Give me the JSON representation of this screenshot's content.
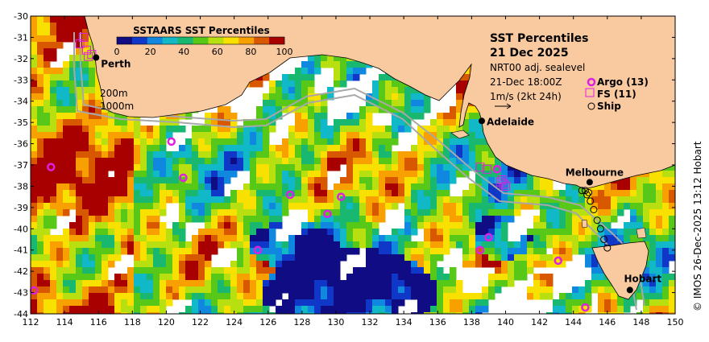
{
  "title": {
    "line1": "SST Percentiles",
    "line2": "21 Dec 2025",
    "line3": "NRT00 adj. sealevel",
    "line4": "21-Dec 18:00Z",
    "line5": "1m/s (2kt 24h)"
  },
  "colorbar": {
    "title": "SSTAARS SST Percentiles",
    "ticks": [
      "0",
      "20",
      "40",
      "60",
      "80",
      "100"
    ],
    "colors": [
      "#100c84",
      "#1038c8",
      "#1088e0",
      "#10b8c8",
      "#18b870",
      "#58c818",
      "#b8e010",
      "#f8e000",
      "#f8a000",
      "#d85800",
      "#a80000"
    ]
  },
  "legend": {
    "argo": "Argo (13)",
    "fs": "FS (11)",
    "ship": "Ship"
  },
  "depth_labels": [
    "200m",
    "1000m"
  ],
  "cities": [
    {
      "name": "Perth",
      "lon": 115.86,
      "lat": -31.95
    },
    {
      "name": "Adelaide",
      "lon": 138.6,
      "lat": -34.93
    },
    {
      "name": "Melbourne",
      "lon": 144.96,
      "lat": -37.81
    },
    {
      "name": "Hobart",
      "lon": 147.33,
      "lat": -42.88
    }
  ],
  "axes": {
    "x_ticks": [
      "112",
      "114",
      "116",
      "118",
      "120",
      "122",
      "124",
      "126",
      "128",
      "130",
      "132",
      "134",
      "136",
      "138",
      "140",
      "142",
      "144",
      "146",
      "148",
      "150"
    ],
    "y_ticks": [
      "-30",
      "-31",
      "-32",
      "-33",
      "-34",
      "-35",
      "-36",
      "-37",
      "-38",
      "-39",
      "-40",
      "-41",
      "-42",
      "-43",
      "-44"
    ],
    "lon_range": [
      112,
      150
    ],
    "lat_range": [
      -44,
      -30
    ]
  },
  "argo_floats": [
    {
      "lon": 113.2,
      "lat": -37.1
    },
    {
      "lon": 120.3,
      "lat": -35.9
    },
    {
      "lon": 121.0,
      "lat": -37.6
    },
    {
      "lon": 127.3,
      "lat": -38.4
    },
    {
      "lon": 130.3,
      "lat": -38.5
    },
    {
      "lon": 129.5,
      "lat": -39.3
    },
    {
      "lon": 125.4,
      "lat": -41.0
    },
    {
      "lon": 139.0,
      "lat": -40.4
    },
    {
      "lon": 138.5,
      "lat": -41.0
    },
    {
      "lon": 143.1,
      "lat": -41.5
    },
    {
      "lon": 144.7,
      "lat": -43.7
    },
    {
      "lon": 112.2,
      "lat": -42.9
    },
    {
      "lon": 139.5,
      "lat": -37.2
    }
  ],
  "fs_stations": [
    {
      "lon": 114.9,
      "lat": -31.3
    },
    {
      "lon": 115.3,
      "lat": -31.6
    },
    {
      "lon": 115.6,
      "lat": -31.8
    },
    {
      "lon": 138.5,
      "lat": -37.1
    },
    {
      "lon": 138.9,
      "lat": -37.2
    },
    {
      "lon": 139.7,
      "lat": -37.8
    },
    {
      "lon": 139.9,
      "lat": -37.9
    },
    {
      "lon": 140.0,
      "lat": -38.0
    },
    {
      "lon": 115.1,
      "lat": -31.0
    },
    {
      "lon": 115.4,
      "lat": -31.9
    },
    {
      "lon": 139.8,
      "lat": -37.7
    }
  ],
  "ship_track": [
    {
      "lon": 144.5,
      "lat": -38.2
    },
    {
      "lon": 144.8,
      "lat": -38.4
    },
    {
      "lon": 145.0,
      "lat": -38.7
    },
    {
      "lon": 145.2,
      "lat": -39.1
    },
    {
      "lon": 145.4,
      "lat": -39.6
    },
    {
      "lon": 145.6,
      "lat": -40.0
    },
    {
      "lon": 145.8,
      "lat": -40.5
    },
    {
      "lon": 146.0,
      "lat": -40.9
    },
    {
      "lon": 144.9,
      "lat": -38.3
    },
    {
      "lon": 144.7,
      "lat": -38.2
    }
  ],
  "watermark": "© IMOS 26-Dec-2025 13:12 Hobart",
  "colors": {
    "land": "#f9c9a0",
    "coast": "#000000",
    "argo": "#e020e0",
    "contour": "#a8a8a8"
  }
}
